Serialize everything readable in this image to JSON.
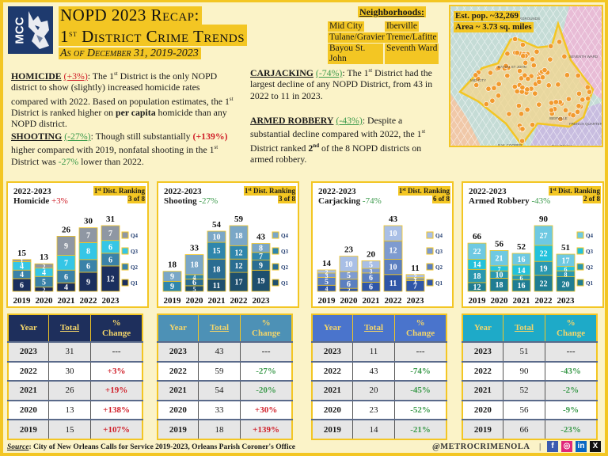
{
  "header": {
    "logo_text": "MCC",
    "title_line1": "NOPD 2023 Recap:",
    "title_line2_prefix": "1",
    "title_line2_sup": "st",
    "title_line2_rest": " District Crime Trends",
    "subtitle": "As of December 31, 2019-2023"
  },
  "neighborhoods": {
    "title": "Neighborhoods:",
    "items": [
      "Mid City",
      "Iberville",
      "Tulane/Gravier",
      "Treme/Lafitte",
      "Bayou St. John",
      "Seventh Ward"
    ]
  },
  "map": {
    "population": "Est. pop. ~32,269",
    "area": "Area ~ 3.73 sq. miles",
    "labels": [
      "FAIRGROUNDS",
      "BAYOU ST JOHN",
      "MID-CITY",
      "SEVENTH WARD",
      "IBERVILLE",
      "FRENCH QUARTER",
      "B.W. COOPER",
      "New Orleans"
    ]
  },
  "summaries": {
    "homicide": {
      "heading": "HOMICIDE",
      "change": "(+3%)",
      "text_1": ": The 1",
      "sup_1": "st",
      "text_2": " District is the only NOPD district to show (slightly) increased homicide rates compared with 2022.  Based on population estimates, the 1",
      "sup_2": "st",
      "text_3": " District is ranked higher on ",
      "bold": "per capita",
      "text_4": " homicide than any NOPD district."
    },
    "shooting": {
      "heading": "SHOOTING",
      "change": "(-27%)",
      "text_1": ": Though still substantially ",
      "highlight": "(+139%)",
      "text_2": " higher compared with 2019, nonfatal shooting in the 1",
      "sup_1": "st",
      "text_3": " District was ",
      "green": "-27%",
      "text_4": " lower than 2022."
    },
    "carjacking": {
      "heading": "CARJACKING",
      "change": "(-74%)",
      "text_1": ": The 1",
      "sup_1": "st",
      "text_2": " District had the largest decline of any NOPD District, from 43 in 2022 to 11 in 2023."
    },
    "armed_robbery": {
      "heading": "ARMED ROBBERY",
      "change": "(-43%)",
      "text_1": ": Despite a substantial decline compared with 2022, the 1",
      "sup_1": "st",
      "text_2": " District ranked ",
      "bold": "2",
      "bold_sup": "nd",
      "text_3": " of the 8 NOPD districts on armed robbery."
    }
  },
  "chart_data": [
    {
      "type": "bar",
      "stacked": true,
      "title": "2022-2023",
      "subtitle": "Homicide",
      "subtitle_change": "+3%",
      "change_color": "#d0202a",
      "ranking_label": "Dist. Ranking",
      "ranking_sup": "st",
      "ranking_prefix": "1",
      "ranking": "3 of 8",
      "categories": [
        "2019",
        "2020",
        "2021",
        "2022",
        "2023"
      ],
      "totals": [
        15,
        13,
        26,
        30,
        31
      ],
      "series": [
        {
          "name": "Q1",
          "color": "#1b2f5e",
          "values": [
            6,
            2,
            4,
            9,
            12
          ]
        },
        {
          "name": "Q2",
          "color": "#3a82a8",
          "values": [
            4,
            5,
            6,
            6,
            6
          ]
        },
        {
          "name": "Q3",
          "color": "#35c6e6",
          "values": [
            4,
            4,
            7,
            8,
            6
          ]
        },
        {
          "name": "Q4",
          "color": "#8f97a3",
          "values": [
            1,
            2,
            9,
            7,
            7
          ]
        }
      ],
      "ymax": 31
    },
    {
      "type": "bar",
      "stacked": true,
      "title": "2022-2023",
      "subtitle": "Shooting",
      "subtitle_change": "-27%",
      "change_color": "#3c9a4c",
      "ranking_label": "Dist. Ranking",
      "ranking_sup": "st",
      "ranking_prefix": "1",
      "ranking": "3 of 8",
      "categories": [
        "2019",
        "2020",
        "2021",
        "2022",
        "2023"
      ],
      "totals": [
        18,
        33,
        54,
        59,
        43
      ],
      "series": [
        {
          "name": "Q1",
          "color": "#1e4f6e",
          "values": [
            0,
            5,
            11,
            17,
            19
          ]
        },
        {
          "name": "Q2",
          "color": "#2a6d92",
          "values": [
            0,
            6,
            18,
            12,
            9
          ]
        },
        {
          "name": "Q3",
          "color": "#2f86ac",
          "values": [
            9,
            4,
            15,
            12,
            7
          ]
        },
        {
          "name": "Q4",
          "color": "#7aa7c7",
          "values": [
            9,
            18,
            10,
            18,
            8
          ]
        }
      ],
      "ymax": 59
    },
    {
      "type": "bar",
      "stacked": true,
      "title": "2022-2023",
      "subtitle": "Carjacking",
      "subtitle_change": "-74%",
      "change_color": "#3c9a4c",
      "ranking_label": "Dist. Ranking",
      "ranking_sup": "st",
      "ranking_prefix": "1",
      "ranking": "6 of 8",
      "categories": [
        "2019",
        "2020",
        "2021",
        "2022",
        "2023"
      ],
      "totals": [
        14,
        23,
        20,
        43,
        11
      ],
      "series": [
        {
          "name": "Q1",
          "color": "#2f56a8",
          "values": [
            4,
            2,
            6,
            11,
            7
          ]
        },
        {
          "name": "Q2",
          "color": "#5b7fc0",
          "values": [
            5,
            6,
            6,
            10,
            1
          ]
        },
        {
          "name": "Q3",
          "color": "#7e9bd0",
          "values": [
            3,
            5,
            3,
            12,
            1
          ]
        },
        {
          "name": "Q4",
          "color": "#a9bfe6",
          "values": [
            2,
            10,
            5,
            10,
            2
          ]
        }
      ],
      "ymax": 43
    },
    {
      "type": "bar",
      "stacked": true,
      "title": "2022-2023",
      "subtitle": "Armed Robbery",
      "subtitle_change": "-43%",
      "change_color": "#3c9a4c",
      "ranking_label": "Dist. Ranking",
      "ranking_sup": "st",
      "ranking_prefix": "1",
      "ranking": "2 of 8",
      "categories": [
        "2019",
        "2020",
        "2021",
        "2022",
        "2023"
      ],
      "totals": [
        66,
        56,
        52,
        90,
        51
      ],
      "series": [
        {
          "name": "Q1",
          "color": "#1f7d93",
          "values": [
            12,
            18,
            16,
            22,
            20
          ]
        },
        {
          "name": "Q2",
          "color": "#2a98b0",
          "values": [
            18,
            10,
            6,
            19,
            8
          ]
        },
        {
          "name": "Q3",
          "color": "#23c2dc",
          "values": [
            14,
            7,
            14,
            22,
            6
          ]
        },
        {
          "name": "Q4",
          "color": "#6ec9e2",
          "values": [
            22,
            21,
            16,
            27,
            17
          ]
        }
      ],
      "ymax": 90
    }
  ],
  "tables": [
    {
      "header_color": "#1e2f5c",
      "headers": [
        "Year",
        "Total",
        "%",
        "Change"
      ],
      "rows": [
        {
          "year": "2023",
          "total": "31",
          "change": "---",
          "color": "#222222"
        },
        {
          "year": "2022",
          "total": "30",
          "change": "+3%",
          "color": "#d0202a"
        },
        {
          "year": "2021",
          "total": "26",
          "change": "+19%",
          "color": "#d0202a"
        },
        {
          "year": "2020",
          "total": "13",
          "change": "+138%",
          "color": "#d0202a"
        },
        {
          "year": "2019",
          "total": "15",
          "change": "+107%",
          "color": "#d0202a"
        }
      ]
    },
    {
      "header_color": "#4d91b6",
      "headers": [
        "Year",
        "Total",
        "%",
        "Change"
      ],
      "rows": [
        {
          "year": "2023",
          "total": "43",
          "change": "---",
          "color": "#222222"
        },
        {
          "year": "2022",
          "total": "59",
          "change": "-27%",
          "color": "#3c9a4c"
        },
        {
          "year": "2021",
          "total": "54",
          "change": "-20%",
          "color": "#3c9a4c"
        },
        {
          "year": "2020",
          "total": "33",
          "change": "+30%",
          "color": "#d0202a"
        },
        {
          "year": "2019",
          "total": "18",
          "change": "+139%",
          "color": "#d0202a"
        }
      ]
    },
    {
      "header_color": "#4a74cc",
      "headers": [
        "Year",
        "Total",
        "%",
        "Change"
      ],
      "rows": [
        {
          "year": "2023",
          "total": "11",
          "change": "---",
          "color": "#222222"
        },
        {
          "year": "2022",
          "total": "43",
          "change": "-74%",
          "color": "#3c9a4c"
        },
        {
          "year": "2021",
          "total": "20",
          "change": "-45%",
          "color": "#3c9a4c"
        },
        {
          "year": "2020",
          "total": "23",
          "change": "-52%",
          "color": "#3c9a4c"
        },
        {
          "year": "2019",
          "total": "14",
          "change": "-21%",
          "color": "#3c9a4c"
        }
      ]
    },
    {
      "header_color": "#1eaac8",
      "headers": [
        "Year",
        "Total",
        "%",
        "Change"
      ],
      "rows": [
        {
          "year": "2023",
          "total": "51",
          "change": "---",
          "color": "#222222"
        },
        {
          "year": "2022",
          "total": "90",
          "change": "-43%",
          "color": "#3c9a4c"
        },
        {
          "year": "2021",
          "total": "52",
          "change": "-2%",
          "color": "#3c9a4c"
        },
        {
          "year": "2020",
          "total": "56",
          "change": "-9%",
          "color": "#3c9a4c"
        },
        {
          "year": "2019",
          "total": "66",
          "change": "-23%",
          "color": "#3c9a4c"
        }
      ]
    }
  ],
  "footer": {
    "source_label": "Source",
    "source_text": ": City of New Orleans Calls for Service 2019-2023, Orleans Parish Coroner's Office",
    "handle": "@METROCRIMENOLA",
    "separator": "|",
    "social": [
      {
        "name": "facebook-icon",
        "glyph": "f",
        "color": "#3b5bb0"
      },
      {
        "name": "instagram-icon",
        "glyph": "◎",
        "color": "#e0287a"
      },
      {
        "name": "linkedin-icon",
        "glyph": "in",
        "color": "#0a66c2"
      },
      {
        "name": "x-icon",
        "glyph": "X",
        "color": "#111111"
      }
    ]
  }
}
